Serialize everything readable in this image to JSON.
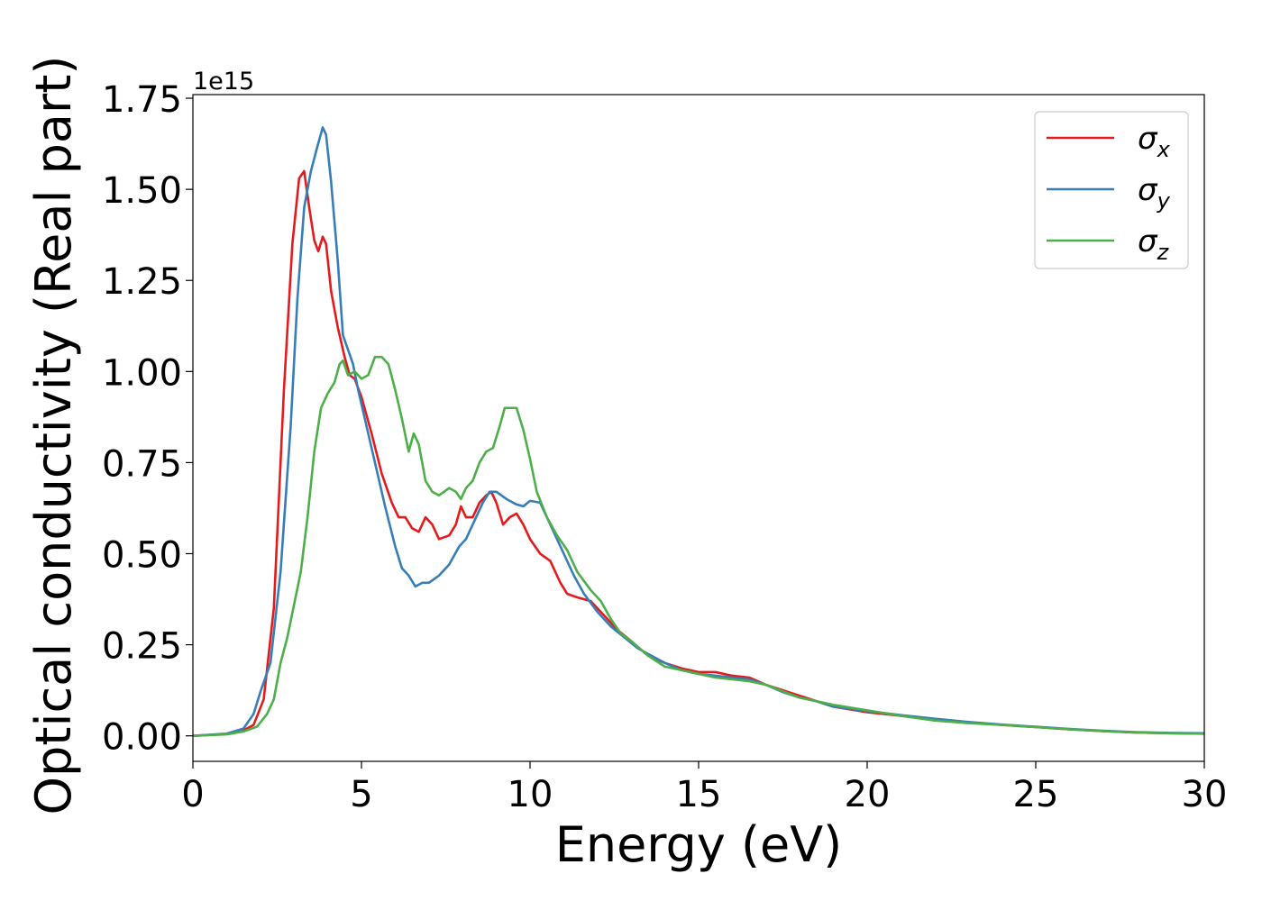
{
  "chart_data": {
    "type": "line",
    "title": "",
    "xlabel": "Energy (eV)",
    "ylabel": "Optical conductivity (Real part)",
    "y_offset_label": "1e15",
    "xlim": [
      0,
      30
    ],
    "ylim": [
      -0.07,
      1.76
    ],
    "x_ticks": [
      0,
      5,
      10,
      15,
      20,
      25,
      30
    ],
    "x_tick_labels": [
      "0",
      "5",
      "10",
      "15",
      "20",
      "25",
      "30"
    ],
    "y_ticks": [
      0.0,
      0.25,
      0.5,
      0.75,
      1.0,
      1.25,
      1.5,
      1.75
    ],
    "y_tick_labels": [
      "0.00",
      "0.25",
      "0.50",
      "0.75",
      "1.00",
      "1.25",
      "1.50",
      "1.75"
    ],
    "grid": false,
    "legend_position": "top-right",
    "series": [
      {
        "name": "σ",
        "subscript": "x",
        "color": "#e41a1c",
        "points": [
          [
            0,
            0
          ],
          [
            1,
            0.005
          ],
          [
            1.5,
            0.015
          ],
          [
            1.8,
            0.03
          ],
          [
            2.1,
            0.1
          ],
          [
            2.4,
            0.35
          ],
          [
            2.7,
            0.95
          ],
          [
            2.95,
            1.35
          ],
          [
            3.15,
            1.53
          ],
          [
            3.3,
            1.55
          ],
          [
            3.45,
            1.45
          ],
          [
            3.6,
            1.36
          ],
          [
            3.72,
            1.33
          ],
          [
            3.85,
            1.37
          ],
          [
            3.95,
            1.35
          ],
          [
            4.1,
            1.22
          ],
          [
            4.3,
            1.12
          ],
          [
            4.5,
            1.04
          ],
          [
            4.65,
            0.99
          ],
          [
            4.8,
            0.98
          ],
          [
            5.0,
            0.93
          ],
          [
            5.3,
            0.83
          ],
          [
            5.6,
            0.72
          ],
          [
            5.9,
            0.64
          ],
          [
            6.1,
            0.6
          ],
          [
            6.3,
            0.6
          ],
          [
            6.5,
            0.57
          ],
          [
            6.7,
            0.56
          ],
          [
            6.9,
            0.6
          ],
          [
            7.1,
            0.58
          ],
          [
            7.3,
            0.54
          ],
          [
            7.6,
            0.55
          ],
          [
            7.8,
            0.58
          ],
          [
            7.95,
            0.63
          ],
          [
            8.1,
            0.6
          ],
          [
            8.3,
            0.6
          ],
          [
            8.5,
            0.64
          ],
          [
            8.7,
            0.66
          ],
          [
            8.85,
            0.67
          ],
          [
            9.0,
            0.64
          ],
          [
            9.2,
            0.58
          ],
          [
            9.4,
            0.6
          ],
          [
            9.6,
            0.61
          ],
          [
            9.8,
            0.58
          ],
          [
            10.0,
            0.54
          ],
          [
            10.3,
            0.5
          ],
          [
            10.6,
            0.48
          ],
          [
            10.9,
            0.42
          ],
          [
            11.1,
            0.39
          ],
          [
            11.4,
            0.38
          ],
          [
            11.8,
            0.37
          ],
          [
            12.2,
            0.33
          ],
          [
            12.6,
            0.29
          ],
          [
            13.0,
            0.26
          ],
          [
            13.5,
            0.22
          ],
          [
            14.0,
            0.2
          ],
          [
            14.5,
            0.185
          ],
          [
            15.0,
            0.175
          ],
          [
            15.5,
            0.175
          ],
          [
            16.0,
            0.165
          ],
          [
            16.5,
            0.16
          ],
          [
            17.0,
            0.14
          ],
          [
            17.5,
            0.125
          ],
          [
            18.0,
            0.11
          ],
          [
            18.5,
            0.095
          ],
          [
            19.0,
            0.08
          ],
          [
            20.0,
            0.065
          ],
          [
            21.0,
            0.055
          ],
          [
            22.0,
            0.045
          ],
          [
            23.0,
            0.037
          ],
          [
            24.0,
            0.03
          ],
          [
            25.0,
            0.024
          ],
          [
            26.0,
            0.018
          ],
          [
            27.0,
            0.013
          ],
          [
            28.0,
            0.009
          ],
          [
            29.0,
            0.007
          ],
          [
            30.0,
            0.006
          ]
        ]
      },
      {
        "name": "σ",
        "subscript": "y",
        "color": "#377eb8",
        "points": [
          [
            0,
            0
          ],
          [
            1,
            0.006
          ],
          [
            1.5,
            0.02
          ],
          [
            1.8,
            0.06
          ],
          [
            2.0,
            0.12
          ],
          [
            2.3,
            0.2
          ],
          [
            2.6,
            0.45
          ],
          [
            2.9,
            0.85
          ],
          [
            3.1,
            1.2
          ],
          [
            3.3,
            1.45
          ],
          [
            3.5,
            1.55
          ],
          [
            3.7,
            1.62
          ],
          [
            3.85,
            1.67
          ],
          [
            3.95,
            1.65
          ],
          [
            4.1,
            1.52
          ],
          [
            4.3,
            1.3
          ],
          [
            4.45,
            1.1
          ],
          [
            4.6,
            1.06
          ],
          [
            4.75,
            1.02
          ],
          [
            4.9,
            0.95
          ],
          [
            5.1,
            0.87
          ],
          [
            5.4,
            0.75
          ],
          [
            5.7,
            0.63
          ],
          [
            6.0,
            0.52
          ],
          [
            6.2,
            0.46
          ],
          [
            6.4,
            0.44
          ],
          [
            6.6,
            0.41
          ],
          [
            6.8,
            0.42
          ],
          [
            7.0,
            0.42
          ],
          [
            7.3,
            0.44
          ],
          [
            7.6,
            0.47
          ],
          [
            7.9,
            0.52
          ],
          [
            8.1,
            0.54
          ],
          [
            8.4,
            0.6
          ],
          [
            8.6,
            0.64
          ],
          [
            8.8,
            0.67
          ],
          [
            9.0,
            0.67
          ],
          [
            9.3,
            0.65
          ],
          [
            9.6,
            0.635
          ],
          [
            9.8,
            0.63
          ],
          [
            10.0,
            0.645
          ],
          [
            10.3,
            0.64
          ],
          [
            10.6,
            0.58
          ],
          [
            11.0,
            0.5
          ],
          [
            11.3,
            0.44
          ],
          [
            11.6,
            0.39
          ],
          [
            12.0,
            0.34
          ],
          [
            12.4,
            0.3
          ],
          [
            12.8,
            0.27
          ],
          [
            13.2,
            0.24
          ],
          [
            13.6,
            0.22
          ],
          [
            14.0,
            0.2
          ],
          [
            14.5,
            0.18
          ],
          [
            15.0,
            0.17
          ],
          [
            15.5,
            0.165
          ],
          [
            16.0,
            0.16
          ],
          [
            16.5,
            0.155
          ],
          [
            17.0,
            0.14
          ],
          [
            17.5,
            0.12
          ],
          [
            18.0,
            0.105
          ],
          [
            18.5,
            0.095
          ],
          [
            19.0,
            0.08
          ],
          [
            20.0,
            0.068
          ],
          [
            21.0,
            0.057
          ],
          [
            22.0,
            0.047
          ],
          [
            23.0,
            0.038
          ],
          [
            24.0,
            0.031
          ],
          [
            25.0,
            0.025
          ],
          [
            26.0,
            0.019
          ],
          [
            27.0,
            0.014
          ],
          [
            28.0,
            0.01
          ],
          [
            29.0,
            0.008
          ],
          [
            30.0,
            0.007
          ]
        ]
      },
      {
        "name": "σ",
        "subscript": "z",
        "color": "#4daf4a",
        "points": [
          [
            0,
            0
          ],
          [
            1,
            0.004
          ],
          [
            1.5,
            0.012
          ],
          [
            1.9,
            0.025
          ],
          [
            2.2,
            0.06
          ],
          [
            2.4,
            0.1
          ],
          [
            2.6,
            0.2
          ],
          [
            2.8,
            0.27
          ],
          [
            3.0,
            0.36
          ],
          [
            3.2,
            0.45
          ],
          [
            3.4,
            0.6
          ],
          [
            3.6,
            0.78
          ],
          [
            3.8,
            0.9
          ],
          [
            4.0,
            0.94
          ],
          [
            4.2,
            0.97
          ],
          [
            4.35,
            1.02
          ],
          [
            4.45,
            1.03
          ],
          [
            4.6,
            0.99
          ],
          [
            4.8,
            1.0
          ],
          [
            5.0,
            0.98
          ],
          [
            5.2,
            0.99
          ],
          [
            5.4,
            1.04
          ],
          [
            5.6,
            1.04
          ],
          [
            5.8,
            1.02
          ],
          [
            6.0,
            0.95
          ],
          [
            6.2,
            0.87
          ],
          [
            6.4,
            0.78
          ],
          [
            6.55,
            0.83
          ],
          [
            6.7,
            0.8
          ],
          [
            6.9,
            0.7
          ],
          [
            7.1,
            0.67
          ],
          [
            7.3,
            0.66
          ],
          [
            7.6,
            0.68
          ],
          [
            7.8,
            0.67
          ],
          [
            7.95,
            0.65
          ],
          [
            8.1,
            0.68
          ],
          [
            8.3,
            0.7
          ],
          [
            8.5,
            0.75
          ],
          [
            8.7,
            0.78
          ],
          [
            8.9,
            0.79
          ],
          [
            9.1,
            0.85
          ],
          [
            9.25,
            0.9
          ],
          [
            9.45,
            0.9
          ],
          [
            9.6,
            0.9
          ],
          [
            9.8,
            0.84
          ],
          [
            10.0,
            0.76
          ],
          [
            10.2,
            0.67
          ],
          [
            10.5,
            0.6
          ],
          [
            10.8,
            0.55
          ],
          [
            11.1,
            0.51
          ],
          [
            11.4,
            0.45
          ],
          [
            11.8,
            0.4
          ],
          [
            12.1,
            0.37
          ],
          [
            12.4,
            0.32
          ],
          [
            12.7,
            0.28
          ],
          [
            13.0,
            0.26
          ],
          [
            13.5,
            0.22
          ],
          [
            14.0,
            0.19
          ],
          [
            14.5,
            0.18
          ],
          [
            15.0,
            0.17
          ],
          [
            15.5,
            0.16
          ],
          [
            16.0,
            0.155
          ],
          [
            16.5,
            0.15
          ],
          [
            17.0,
            0.14
          ],
          [
            17.5,
            0.122
          ],
          [
            18.0,
            0.105
          ],
          [
            18.5,
            0.095
          ],
          [
            19.0,
            0.085
          ],
          [
            20.0,
            0.07
          ],
          [
            21.0,
            0.055
          ],
          [
            22.0,
            0.042
          ],
          [
            23.0,
            0.035
          ],
          [
            24.0,
            0.03
          ],
          [
            25.0,
            0.024
          ],
          [
            26.0,
            0.018
          ],
          [
            27.0,
            0.013
          ],
          [
            28.0,
            0.009
          ],
          [
            29.0,
            0.007
          ],
          [
            30.0,
            0.006
          ]
        ]
      }
    ]
  }
}
